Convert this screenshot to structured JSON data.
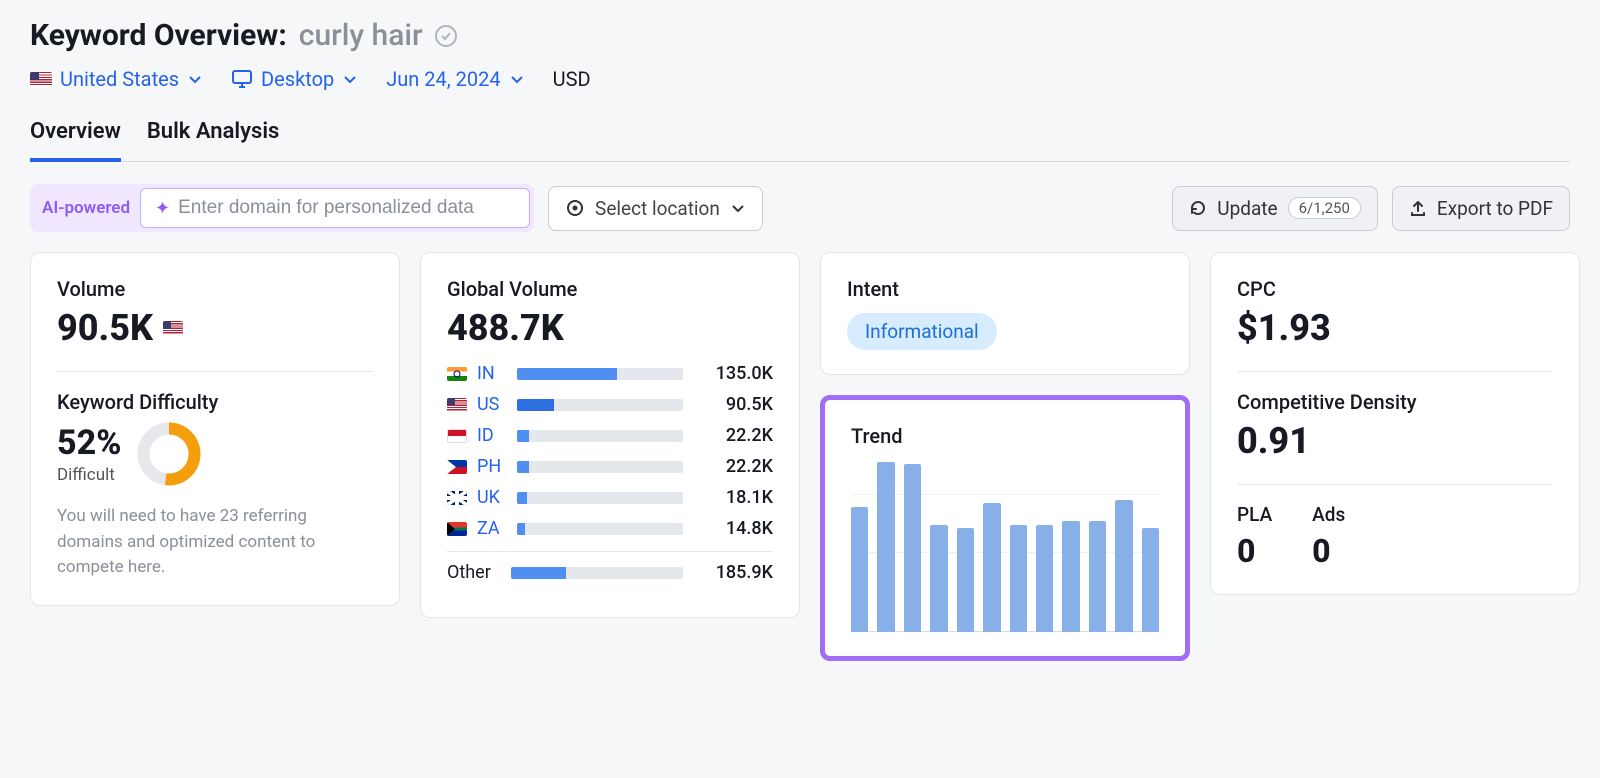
{
  "header": {
    "title_prefix": "Keyword Overview:",
    "keyword": "curly hair",
    "country_label": "United States",
    "device_label": "Desktop",
    "date_label": "Jun 24, 2024",
    "currency": "USD"
  },
  "tabs": {
    "overview": "Overview",
    "bulk": "Bulk Analysis"
  },
  "toolbar": {
    "ai_label": "AI-powered",
    "domain_placeholder": "Enter domain for personalized data",
    "location_label": "Select location",
    "update_label": "Update",
    "update_count": "6/1,250",
    "export_label": "Export to PDF"
  },
  "volume": {
    "label": "Volume",
    "value": "90.5K"
  },
  "kd": {
    "label": "Keyword Difficulty",
    "value": "52%",
    "name": "Difficult",
    "description": "You will need to have 23 referring domains and optimized content to compete here.",
    "donut": {
      "pct": 52,
      "color": "#f59e0b",
      "track": "#e6e8ec"
    }
  },
  "global": {
    "label": "Global Volume",
    "total": "488.7K",
    "bar_fill": "#4f8ff0",
    "bar_fill_alt": "#2d6fe0",
    "bar_track": "#e4e7ec",
    "rows": [
      {
        "code": "IN",
        "flag": "flag-in",
        "value": "135.0K",
        "pct": 60
      },
      {
        "code": "US",
        "flag": "flag-us",
        "value": "90.5K",
        "pct": 22,
        "alt": true
      },
      {
        "code": "ID",
        "flag": "flag-id",
        "value": "22.2K",
        "pct": 7
      },
      {
        "code": "PH",
        "flag": "flag-ph",
        "value": "22.2K",
        "pct": 7
      },
      {
        "code": "UK",
        "flag": "flag-uk",
        "value": "18.1K",
        "pct": 6
      },
      {
        "code": "ZA",
        "flag": "flag-za",
        "value": "14.8K",
        "pct": 5
      }
    ],
    "other_label": "Other",
    "other_value": "185.9K",
    "other_pct": 32
  },
  "intent": {
    "label": "Intent",
    "value": "Informational",
    "badge_bg": "#d7ecff",
    "badge_fg": "#1d6fd6"
  },
  "trend": {
    "label": "Trend",
    "type": "bar",
    "bar_color": "#88b0e8",
    "highlight_border": "#a36cf5",
    "values": [
      70,
      95,
      94,
      60,
      58,
      72,
      60,
      60,
      62,
      62,
      74,
      58
    ]
  },
  "cpc": {
    "label": "CPC",
    "value": "$1.93"
  },
  "comp": {
    "label": "Competitive Density",
    "value": "0.91"
  },
  "pla": {
    "label": "PLA",
    "value": "0"
  },
  "ads": {
    "label": "Ads",
    "value": "0"
  }
}
